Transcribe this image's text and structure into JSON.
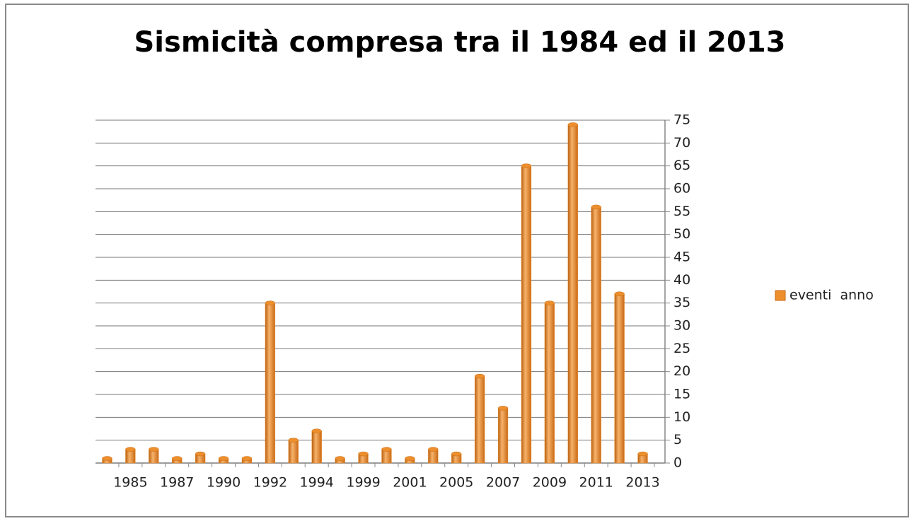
{
  "chart_data": {
    "type": "bar",
    "title": "Sismicità compresa tra il 1984 ed il 2013",
    "categories": [
      null,
      "1985",
      null,
      "1987",
      null,
      "1990",
      null,
      "1992",
      null,
      "1994",
      null,
      "1999",
      null,
      "2001",
      null,
      "2005",
      null,
      "2007",
      null,
      "2009",
      null,
      "2011",
      null,
      "2013"
    ],
    "series": [
      {
        "name": "eventi  anno",
        "color": "#ed8f2c",
        "values": [
          1,
          3,
          3,
          1,
          2,
          1,
          1,
          35,
          5,
          7,
          1,
          2,
          3,
          1,
          3,
          2,
          19,
          12,
          65,
          35,
          74,
          56,
          37,
          2
        ]
      }
    ],
    "ylim": [
      0,
      75
    ],
    "yticks": [
      0,
      5,
      10,
      15,
      20,
      25,
      30,
      35,
      40,
      45,
      50,
      55,
      60,
      65,
      70,
      75
    ],
    "y_axis_side": "right",
    "grid": true,
    "legend": "right"
  }
}
